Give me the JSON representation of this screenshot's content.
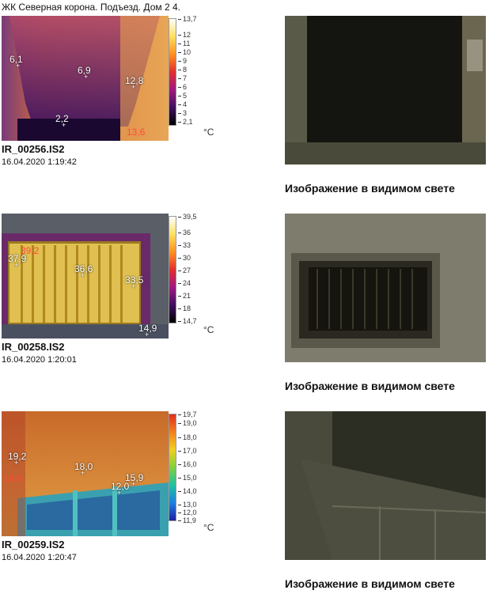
{
  "title": "ЖК Северная корона. Подъезд. Дом 2 4.",
  "caption_text": "Изображение в видимом свете",
  "unit": "°C",
  "records": [
    {
      "file": "IR_00256.IS2",
      "date": "16.04.2020 1:19:42",
      "scale_ticks": [
        "13,7",
        "12",
        "11",
        "10",
        "9",
        "8",
        "7",
        "6",
        "5",
        "4",
        "3",
        "2,1"
      ],
      "spots": [
        {
          "label": "6,1",
          "color": "white"
        },
        {
          "label": "6,9",
          "color": "white"
        },
        {
          "label": "12,8",
          "color": "white"
        },
        {
          "label": "2,2",
          "color": "white"
        },
        {
          "label": "13,6",
          "color": "red"
        }
      ]
    },
    {
      "file": "IR_00258.IS2",
      "date": "16.04.2020 1:20:01",
      "scale_ticks": [
        "39,5",
        "36",
        "33",
        "30",
        "27",
        "24",
        "21",
        "18",
        "14,7"
      ],
      "spots": [
        {
          "label": "39,2",
          "color": "red"
        },
        {
          "label": "37,9",
          "color": "white"
        },
        {
          "label": "36,6",
          "color": "white"
        },
        {
          "label": "33,5",
          "color": "white"
        },
        {
          "label": "14,9",
          "color": "white"
        }
      ]
    },
    {
      "file": "IR_00259.IS2",
      "date": "16.04.2020 1:20:47",
      "scale_ticks": [
        "19,7",
        "19,0",
        "18,0",
        "17,0",
        "16,0",
        "15,0",
        "14,0",
        "13,0",
        "12,0",
        "11,9"
      ],
      "spots": [
        {
          "label": "19,2",
          "color": "white"
        },
        {
          "label": "18,0",
          "color": "white"
        },
        {
          "label": "15,9",
          "color": "white"
        },
        {
          "label": "12,0",
          "color": "white"
        },
        {
          "label": "19,6",
          "color": "red"
        }
      ]
    }
  ]
}
